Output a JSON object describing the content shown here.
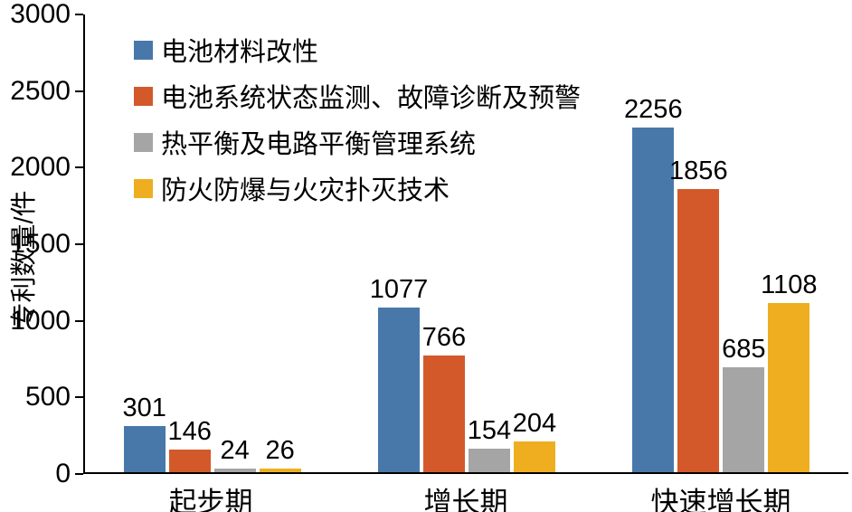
{
  "chart_data": {
    "type": "bar",
    "ylabel": "专利数量/件",
    "xlabel": "",
    "ylim": [
      0,
      3000
    ],
    "yticks": [
      0,
      500,
      1000,
      1500,
      2000,
      2500,
      3000
    ],
    "categories": [
      "起步期",
      "增长期",
      "快速增长期"
    ],
    "series": [
      {
        "name": "电池材料改性",
        "color": "#4878aa",
        "values": [
          301,
          1077,
          2256
        ]
      },
      {
        "name": "电池系统状态监测、故障诊断及预警",
        "color": "#d3592a",
        "values": [
          146,
          766,
          1856
        ]
      },
      {
        "name": "热平衡及电路平衡管理系统",
        "color": "#a5a5a5",
        "values": [
          24,
          154,
          685
        ]
      },
      {
        "name": "防火防爆与火灾扑灭技术",
        "color": "#eeae20",
        "values": [
          26,
          204,
          1108
        ]
      }
    ],
    "grid": false,
    "legend_position": "top-left",
    "value_labels": true,
    "axis_color": "#000000",
    "background_color": "#ffffff"
  }
}
